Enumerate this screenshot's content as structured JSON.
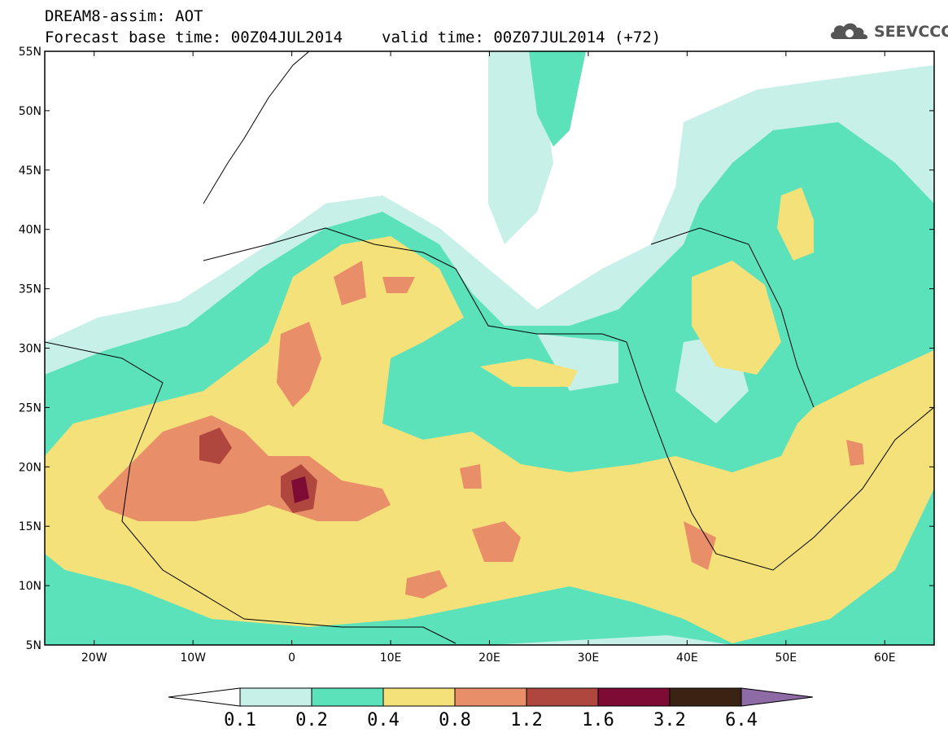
{
  "header": {
    "title": "DREAM8-assim: AOT",
    "base_time": "Forecast base time: 00Z04JUL2014",
    "valid_time": "valid time: 00Z07JUL2014 (+72)"
  },
  "logo": {
    "text": "SEEVCCC",
    "icon": "cloud-icon"
  },
  "map": {
    "field": "Aerosol optical thickness (AOT)",
    "lon_range": [
      -25,
      65
    ],
    "lat_range": [
      5,
      55
    ],
    "lat_ticks": [
      "55N",
      "50N",
      "45N",
      "40N",
      "35N",
      "30N",
      "25N",
      "20N",
      "15N",
      "10N",
      "5N"
    ],
    "lon_ticks": [
      "20W",
      "10W",
      "0",
      "10E",
      "20E",
      "30E",
      "40E",
      "50E",
      "60E"
    ]
  },
  "colorbar": {
    "levels": [
      "0.1",
      "0.2",
      "0.4",
      "0.8",
      "1.2",
      "1.6",
      "3.2",
      "6.4"
    ],
    "colors": [
      "#ffffff",
      "#c6f0e8",
      "#5ce2bb",
      "#f5e179",
      "#e88e68",
      "#b0473e",
      "#7d0b33",
      "#3a2312",
      "#8e6ba6"
    ]
  }
}
